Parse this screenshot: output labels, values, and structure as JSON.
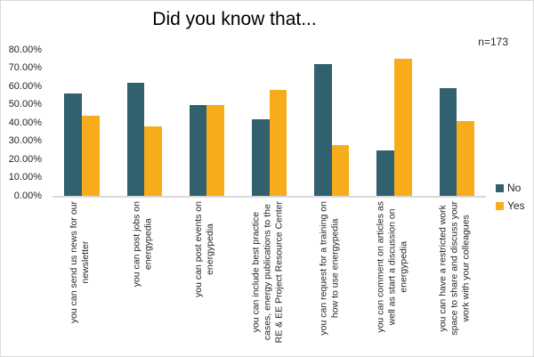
{
  "chart_data": {
    "type": "bar",
    "title": "Did you know that...",
    "annotation": "n=173",
    "xlabel": "",
    "ylabel": "",
    "ylim": [
      0,
      80
    ],
    "ytick_step": 10,
    "yticks": [
      "0.00%",
      "10.00%",
      "20.00%",
      "30.00%",
      "40.00%",
      "50.00%",
      "60.00%",
      "70.00%",
      "80.00%"
    ],
    "grid": false,
    "legend_position": "right",
    "categories": [
      "you can send us news for our newsletter",
      "you can post jobs on energypedia",
      "you can post events on energypedia",
      "you can include best practice cases, energy publications to the RE & EE Project Resource Center",
      "you can request for a training on how to use energypedia",
      "you can comment on articles as well as start a discussion on energypedia",
      "you can have a restricted work space to share and discuss your work with your colleagues"
    ],
    "category_lines": [
      [
        "you can send us news for our",
        "newsletter"
      ],
      [
        "you can post jobs on",
        "energypedia"
      ],
      [
        "you can post events on",
        "energypedia"
      ],
      [
        "you can include best practice",
        "cases, energy publications to the",
        "RE & EE Project Resource Center"
      ],
      [
        "you can request for a training on",
        "how to use energypedia"
      ],
      [
        "you can comment on articles as",
        "well as start a discussion on",
        "energypedia"
      ],
      [
        "you can have a restricted work",
        "space to share and discuss your",
        "work with your colleagues"
      ]
    ],
    "series": [
      {
        "name": "No",
        "color": "#31606e",
        "values": [
          56,
          62,
          50,
          42,
          72,
          25,
          59
        ]
      },
      {
        "name": "Yes",
        "color": "#f6ac1b",
        "values": [
          44,
          38,
          50,
          58,
          28,
          75,
          41
        ]
      }
    ]
  }
}
